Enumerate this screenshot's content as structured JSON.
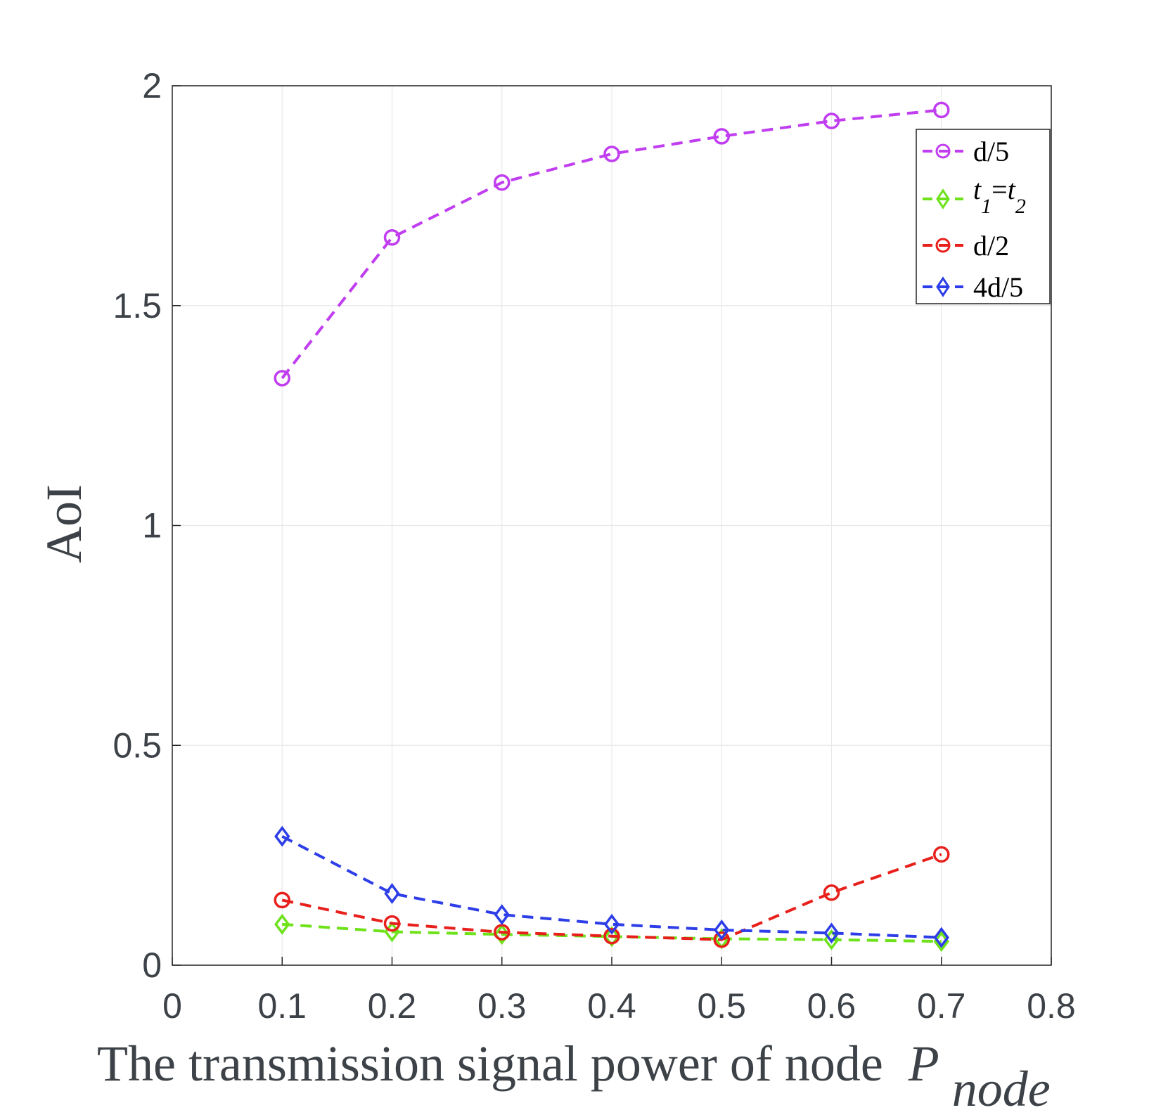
{
  "chart_data": {
    "type": "line",
    "xlabel": "The transmission signal power of node",
    "xlabel_symbol": "P",
    "xlabel_subscript": "node",
    "ylabel": "AoI",
    "xlim": [
      0,
      0.8
    ],
    "ylim": [
      0,
      2
    ],
    "xticks": [
      "0",
      "0.1",
      "0.2",
      "0.3",
      "0.4",
      "0.5",
      "0.6",
      "0.7",
      "0.8"
    ],
    "yticks": [
      "0",
      "0.5",
      "1",
      "1.5",
      "2"
    ],
    "grid": true,
    "legend_position": "top-right",
    "x": [
      0.1,
      0.2,
      0.3,
      0.4,
      0.5,
      0.6,
      0.7
    ],
    "series": [
      {
        "name": "d/5",
        "marker": "circle",
        "color": "#c03df0",
        "values": [
          1.335,
          1.655,
          1.78,
          1.845,
          1.885,
          1.92,
          1.945
        ]
      },
      {
        "name": "t1=t2",
        "name_display": {
          "base1": "t",
          "sub1": "1",
          "eq": "=",
          "base2": "t",
          "sub2": "2"
        },
        "marker": "diamond",
        "color": "#6ee21a",
        "values": [
          0.093,
          0.076,
          0.07,
          0.065,
          0.06,
          0.058,
          0.054
        ]
      },
      {
        "name": "d/2",
        "marker": "circle",
        "color": "#e8201c",
        "values": [
          0.148,
          0.095,
          0.075,
          0.066,
          0.058,
          0.165,
          0.252
        ]
      },
      {
        "name": "4d/5",
        "marker": "diamond",
        "color": "#2d3ee8",
        "values": [
          0.293,
          0.163,
          0.115,
          0.093,
          0.08,
          0.073,
          0.063
        ]
      }
    ]
  }
}
